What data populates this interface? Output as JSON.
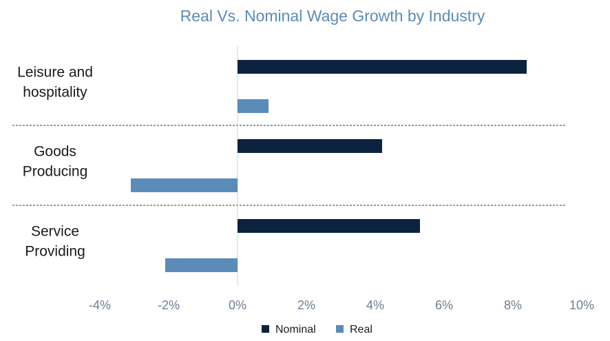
{
  "chart_data": {
    "type": "bar",
    "orientation": "horizontal",
    "title": "Real Vs. Nominal Wage Growth by Industry",
    "categories": [
      "Leisure and hospitality",
      "Goods Producing",
      "Service Providing"
    ],
    "category_lines": [
      [
        "Leisure and",
        "hospitality"
      ],
      [
        "Goods",
        "Producing"
      ],
      [
        "Service",
        "Providing"
      ]
    ],
    "series": [
      {
        "name": "Nominal",
        "color": "#0c2340",
        "values": [
          8.4,
          4.2,
          5.3
        ]
      },
      {
        "name": "Real",
        "color": "#5b8bb8",
        "values": [
          0.9,
          -3.1,
          -2.1
        ]
      }
    ],
    "xlim": [
      -4,
      10
    ],
    "xticks": [
      -4,
      -2,
      0,
      2,
      4,
      6,
      8,
      10
    ],
    "tick_labels": [
      "-4%",
      "-2%",
      "0%",
      "2%",
      "4%",
      "6%",
      "8%",
      "10%"
    ],
    "legend_position": "bottom",
    "separators": "dashed"
  }
}
